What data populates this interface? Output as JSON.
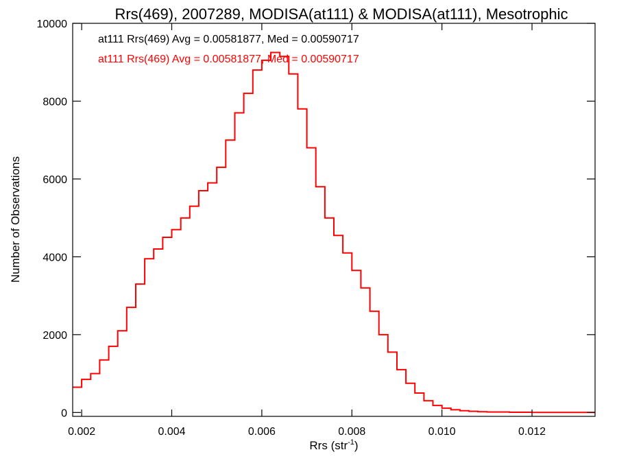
{
  "chart_data": {
    "type": "line",
    "title": "Rrs(469), 2007289, MODISA(at111) & MODISA(at111), Mesotrophic",
    "xlabel": "Rrs (str",
    "xlabel_sup": "-1",
    "xlabel_suffix": ")",
    "ylabel": "Number of Observations",
    "xlim": [
      0.0018,
      0.0134
    ],
    "ylim": [
      -100,
      10000
    ],
    "xticks": [
      0.002,
      0.004,
      0.006,
      0.008,
      0.01,
      0.012
    ],
    "xtick_labels": [
      "0.002",
      "0.004",
      "0.006",
      "0.008",
      "0.010",
      "0.012"
    ],
    "yticks": [
      0,
      2000,
      4000,
      6000,
      8000,
      10000
    ],
    "ytick_labels": [
      "0",
      "2000",
      "4000",
      "6000",
      "8000",
      "10000"
    ],
    "step": "histogram",
    "annotations": [
      {
        "text": "at111 Rrs(469) Avg = 0.00581877, Med = 0.00590717",
        "color": "#000000"
      },
      {
        "text": "at111 Rrs(469) Avg = 0.00581877, Med = 0.00590717",
        "color": "#ff0000"
      }
    ],
    "series": [
      {
        "color": "#ff0000",
        "x": [
          0.0018,
          0.002,
          0.0022,
          0.0024,
          0.0026,
          0.0028,
          0.003,
          0.0032,
          0.0034,
          0.0036,
          0.0038,
          0.004,
          0.0042,
          0.0044,
          0.0046,
          0.0048,
          0.005,
          0.0052,
          0.0054,
          0.0056,
          0.0058,
          0.006,
          0.0062,
          0.0064,
          0.0066,
          0.0068,
          0.007,
          0.0072,
          0.0074,
          0.0076,
          0.0078,
          0.008,
          0.0082,
          0.0084,
          0.0086,
          0.0088,
          0.009,
          0.0092,
          0.0094,
          0.0096,
          0.0098,
          0.01,
          0.0102,
          0.0104,
          0.0106,
          0.0108,
          0.011,
          0.0115,
          0.012,
          0.0125,
          0.013,
          0.0134
        ],
        "y": [
          650,
          850,
          1000,
          1350,
          1700,
          2100,
          2700,
          3300,
          3950,
          4200,
          4500,
          4700,
          5000,
          5300,
          5700,
          5900,
          6300,
          7000,
          7700,
          8200,
          8800,
          9050,
          9250,
          9150,
          8700,
          7800,
          6800,
          5800,
          5000,
          4550,
          4100,
          3650,
          3200,
          2600,
          2000,
          1550,
          1100,
          750,
          500,
          300,
          180,
          110,
          70,
          45,
          30,
          20,
          12,
          6,
          3,
          2,
          1,
          0
        ]
      }
    ]
  }
}
